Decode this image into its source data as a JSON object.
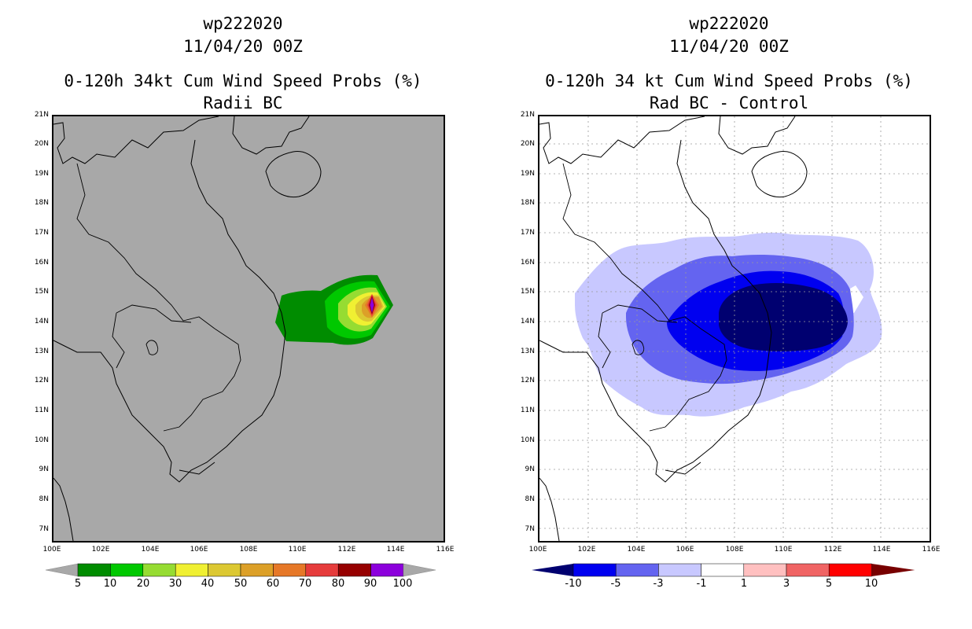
{
  "left": {
    "title_line1": "wp222020",
    "title_line2": "11/04/20 00Z",
    "title_line3": "0-120h 34kt Cum Wind Speed Probs (%)",
    "title_line4": "Radii BC",
    "background_color": "#a8a8a8",
    "colorbar": {
      "colors": [
        "#008c00",
        "#00c800",
        "#96dc32",
        "#f0f032",
        "#dcc832",
        "#dca028",
        "#e67828",
        "#e63c3c",
        "#960000",
        "#8c00dc"
      ],
      "ticks": [
        "5",
        "10",
        "20",
        "30",
        "40",
        "50",
        "60",
        "70",
        "80",
        "90",
        "100"
      ]
    }
  },
  "right": {
    "title_line1": "wp222020",
    "title_line2": "11/04/20 00Z",
    "title_line3": "0-120h 34 kt Cum Wind Speed Probs (%)",
    "title_line4": "Rad BC - Control",
    "background_color": "#ffffff",
    "colorbar": {
      "colors": [
        "#000070",
        "#0000f0",
        "#6464f0",
        "#c8c8ff",
        "#ffffff",
        "#ffc0c0",
        "#f06464",
        "#ff0000",
        "#780000"
      ],
      "ticks": [
        "-10",
        "-5",
        "-3",
        "-1",
        "1",
        "3",
        "5",
        "10"
      ]
    }
  },
  "lat_labels": [
    "21N",
    "20N",
    "19N",
    "18N",
    "17N",
    "16N",
    "15N",
    "14N",
    "13N",
    "12N",
    "11N",
    "10N",
    "9N",
    "8N",
    "7N"
  ],
  "lon_labels": [
    "100E",
    "102E",
    "104E",
    "106E",
    "108E",
    "110E",
    "112E",
    "114E",
    "116E"
  ]
}
